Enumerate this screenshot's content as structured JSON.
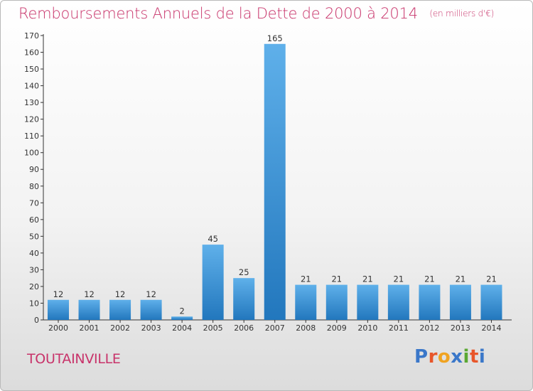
{
  "title": "Remboursements Annuels de la Dette de 2000 à 2014",
  "unit_label": "(en milliers d'€)",
  "commune": "TOUTAINVILLE",
  "logo": {
    "letters": [
      "P",
      "r",
      "o",
      "x",
      "i",
      "t",
      "i"
    ],
    "colors": [
      "#3a77c9",
      "#e8562a",
      "#f0a321",
      "#3a77c9",
      "#5aa832",
      "#e8562a",
      "#3a77c9"
    ]
  },
  "colors": {
    "title": "#c8336a",
    "bar_top": "#5fb0ea",
    "bar_bottom": "#2277bd",
    "axis": "#333333"
  },
  "chart_data": {
    "type": "bar",
    "title": "Remboursements Annuels de la Dette de 2000 à 2014",
    "xlabel": "",
    "ylabel": "",
    "categories": [
      "2000",
      "2001",
      "2002",
      "2003",
      "2004",
      "2005",
      "2006",
      "2007",
      "2008",
      "2009",
      "2010",
      "2011",
      "2012",
      "2013",
      "2014"
    ],
    "values": [
      12,
      12,
      12,
      12,
      2,
      45,
      25,
      165,
      21,
      21,
      21,
      21,
      21,
      21,
      21
    ],
    "labels": [
      "12",
      "12",
      "12",
      "12",
      "2",
      "45",
      "25",
      "165",
      "21",
      "21",
      "21",
      "21",
      "21",
      "21",
      "21"
    ],
    "ylim": [
      0,
      170
    ],
    "yticks": [
      0,
      10,
      20,
      30,
      40,
      50,
      60,
      70,
      80,
      90,
      100,
      110,
      120,
      130,
      140,
      150,
      160,
      170
    ],
    "grid": false
  }
}
